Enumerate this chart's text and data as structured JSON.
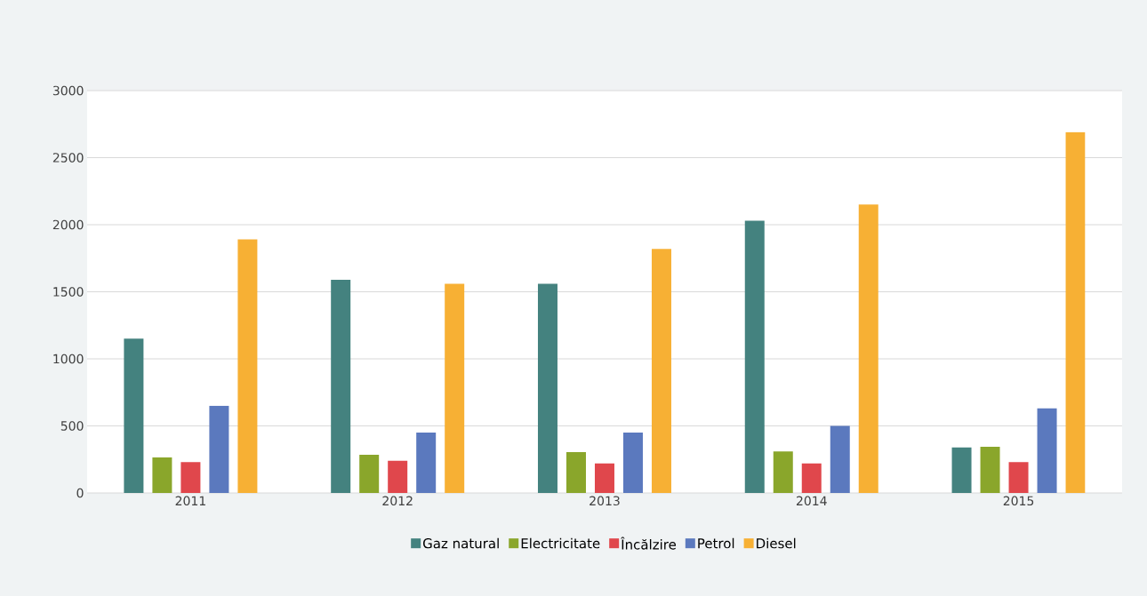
{
  "chart_data": {
    "type": "bar",
    "categories": [
      "2011",
      "2012",
      "2013",
      "2014",
      "2015"
    ],
    "series": [
      {
        "name": "Gaz natural",
        "color": "#44827f",
        "values": [
          1150,
          1590,
          1560,
          2030,
          340
        ]
      },
      {
        "name": "Electricitate",
        "color": "#8aa62b",
        "values": [
          265,
          285,
          305,
          310,
          345
        ]
      },
      {
        "name": "Încălzire",
        "color": "#e0474c",
        "values": [
          230,
          240,
          220,
          220,
          230
        ]
      },
      {
        "name": "Petrol",
        "color": "#5b79be",
        "values": [
          650,
          450,
          450,
          500,
          630
        ]
      },
      {
        "name": "Diesel",
        "color": "#f7b034",
        "values": [
          1890,
          1560,
          1820,
          2150,
          2690
        ]
      }
    ],
    "ylim": [
      0,
      3000
    ],
    "yticks": [
      0,
      500,
      1000,
      1500,
      2000,
      2500,
      3000
    ],
    "grid": "y",
    "legend": "bottom"
  }
}
